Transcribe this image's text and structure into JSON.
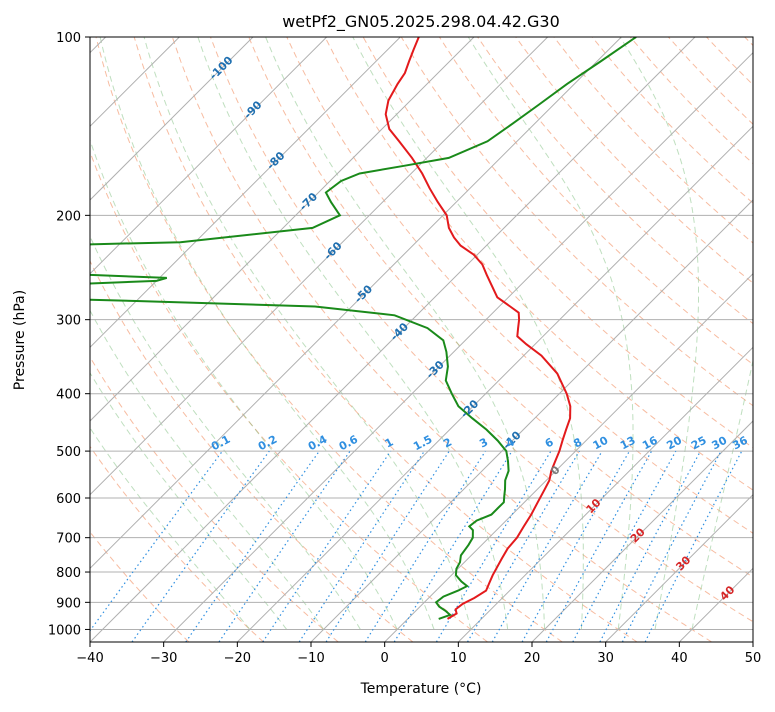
{
  "chart_data": {
    "type": "skew-t",
    "title": "wetPf2_GN05.2025.298.04.42.G30",
    "xlabel": "Temperature (°C)",
    "ylabel": "Pressure (hPa)",
    "xlim": [
      -40,
      50
    ],
    "ylim": [
      1050,
      100
    ],
    "y_log_scale": true,
    "grid": true,
    "x_ticks": [
      "−40",
      "−30",
      "−20",
      "−10",
      "0",
      "10",
      "20",
      "30",
      "40",
      "50"
    ],
    "y_ticks": [
      {
        "p": 100,
        "label": "100"
      },
      {
        "p": 200,
        "label": "200"
      },
      {
        "p": 300,
        "label": "300"
      },
      {
        "p": 400,
        "label": "400"
      },
      {
        "p": 500,
        "label": "500"
      },
      {
        "p": 600,
        "label": "600"
      },
      {
        "p": 700,
        "label": "700"
      },
      {
        "p": 800,
        "label": "800"
      },
      {
        "p": 900,
        "label": "900"
      },
      {
        "p": 1000,
        "label": "1000"
      }
    ],
    "isotherm_labels": [
      {
        "t": -100,
        "p": 113,
        "label": "-100"
      },
      {
        "t": -90,
        "p": 133,
        "label": "-90"
      },
      {
        "t": -80,
        "p": 162,
        "label": "-80"
      },
      {
        "t": -70,
        "p": 190,
        "label": "-70"
      },
      {
        "t": -60,
        "p": 230,
        "label": "-60"
      },
      {
        "t": -50,
        "p": 272,
        "label": "-50"
      },
      {
        "t": -40,
        "p": 315,
        "label": "-40"
      },
      {
        "t": -30,
        "p": 365,
        "label": "-30"
      },
      {
        "t": -20,
        "p": 425,
        "label": "-20"
      },
      {
        "t": -10,
        "p": 480,
        "label": "-10"
      },
      {
        "t": 0,
        "p": 540,
        "label": "0"
      },
      {
        "t": 10,
        "p": 620,
        "label": "10"
      },
      {
        "t": 20,
        "p": 695,
        "label": "20"
      },
      {
        "t": 30,
        "p": 775,
        "label": "30"
      },
      {
        "t": 40,
        "p": 870,
        "label": "40"
      }
    ],
    "mixing_ratio_labels": [
      "0.1",
      "0.2",
      "0.4",
      "0.6",
      "1",
      "1.5",
      "2",
      "3",
      "4",
      "6",
      "8",
      "10",
      "13",
      "16",
      "20",
      "25",
      "30",
      "36"
    ],
    "series": [
      {
        "name": "",
        "role": "temperature",
        "color": "#e31a1c",
        "points": [
          [
            5.4,
            960
          ],
          [
            5.9,
            940
          ],
          [
            5.2,
            925
          ],
          [
            5.4,
            905
          ],
          [
            6.2,
            885
          ],
          [
            6.8,
            860
          ],
          [
            6.2,
            835
          ],
          [
            5.6,
            810
          ],
          [
            5.2,
            790
          ],
          [
            4.6,
            760
          ],
          [
            4.0,
            730
          ],
          [
            3.8,
            700
          ],
          [
            3.2,
            670
          ],
          [
            2.6,
            640
          ],
          [
            1.8,
            610
          ],
          [
            1.0,
            580
          ],
          [
            0.4,
            560
          ],
          [
            -0.6,
            540
          ],
          [
            -1.4,
            520
          ],
          [
            -2.2,
            500
          ],
          [
            -3.2,
            480
          ],
          [
            -4.2,
            460
          ],
          [
            -5.2,
            440
          ],
          [
            -6.8,
            420
          ],
          [
            -9.0,
            400
          ],
          [
            -13.0,
            370
          ],
          [
            -17.6,
            345
          ],
          [
            -21.2,
            330
          ],
          [
            -23.5,
            320
          ],
          [
            -24.5,
            310
          ],
          [
            -25.5,
            300
          ],
          [
            -26.5,
            292
          ],
          [
            -28.5,
            285
          ],
          [
            -31.5,
            275
          ],
          [
            -34.0,
            262
          ],
          [
            -36.0,
            252
          ],
          [
            -38.0,
            242
          ],
          [
            -40.5,
            233
          ],
          [
            -43.5,
            225
          ],
          [
            -45.5,
            218
          ],
          [
            -47.5,
            210
          ],
          [
            -49.5,
            200
          ],
          [
            -52.5,
            190
          ],
          [
            -55.5,
            180
          ],
          [
            -58.5,
            170
          ],
          [
            -62.0,
            160
          ],
          [
            -66.0,
            150
          ],
          [
            -69.0,
            143
          ],
          [
            -71.5,
            135
          ],
          [
            -73.0,
            128
          ],
          [
            -74.0,
            120
          ],
          [
            -74.5,
            115
          ],
          [
            -75.5,
            110
          ],
          [
            -76.5,
            105
          ],
          [
            -77.5,
            100
          ]
        ]
      },
      {
        "name": "",
        "role": "dewpoint",
        "color": "#1a8a1a",
        "points": [
          [
            4.2,
            960
          ],
          [
            5.2,
            945
          ],
          [
            4.0,
            930
          ],
          [
            2.6,
            915
          ],
          [
            1.6,
            900
          ],
          [
            1.8,
            880
          ],
          [
            3.0,
            860
          ],
          [
            3.6,
            845
          ],
          [
            2.2,
            830
          ],
          [
            0.6,
            810
          ],
          [
            -0.2,
            790
          ],
          [
            -0.6,
            770
          ],
          [
            -1.4,
            750
          ],
          [
            -1.8,
            720
          ],
          [
            -2.2,
            700
          ],
          [
            -3.2,
            680
          ],
          [
            -4.2,
            670
          ],
          [
            -4.0,
            655
          ],
          [
            -2.8,
            640
          ],
          [
            -2.8,
            625
          ],
          [
            -2.8,
            610
          ],
          [
            -3.6,
            595
          ],
          [
            -4.4,
            580
          ],
          [
            -5.6,
            560
          ],
          [
            -6.4,
            540
          ],
          [
            -7.8,
            520
          ],
          [
            -9.4,
            500
          ],
          [
            -12.0,
            480
          ],
          [
            -15.0,
            460
          ],
          [
            -18.5,
            440
          ],
          [
            -22.0,
            420
          ],
          [
            -24.6,
            400
          ],
          [
            -27.2,
            380
          ],
          [
            -28.8,
            360
          ],
          [
            -31.0,
            340
          ],
          [
            -33.0,
            325
          ],
          [
            -36.8,
            310
          ],
          [
            -43.0,
            295
          ],
          [
            -55.0,
            285
          ],
          [
            -80.0,
            279
          ],
          [
            -95.0,
            276
          ],
          [
            -100.0,
            272
          ],
          [
            -101.0,
            268
          ],
          [
            -93.0,
            262
          ],
          [
            -80.0,
            258
          ],
          [
            -79.0,
            255
          ],
          [
            -90.0,
            252
          ],
          [
            -101.0,
            248
          ],
          [
            -103.0,
            242
          ],
          [
            -99.0,
            232
          ],
          [
            -95.0,
            224
          ],
          [
            -82.0,
            222
          ],
          [
            -66.0,
            210
          ],
          [
            -64.0,
            200
          ],
          [
            -67.0,
            190
          ],
          [
            -69.0,
            183
          ],
          [
            -68.5,
            175
          ],
          [
            -67.0,
            170
          ],
          [
            -62.0,
            165
          ],
          [
            -57.0,
            160
          ],
          [
            -54.0,
            150
          ],
          [
            -53.0,
            140
          ],
          [
            -52.0,
            130
          ],
          [
            -51.0,
            120
          ],
          [
            -49.5,
            110
          ],
          [
            -48.0,
            100
          ]
        ]
      }
    ]
  }
}
